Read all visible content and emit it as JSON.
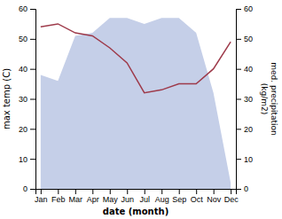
{
  "chart_data": {
    "type": "line",
    "xlabel": "date (month)",
    "ylabel": "max temp (C)",
    "y2label": "med. precipitation\n(kg/m2)",
    "categories": [
      "Jan",
      "Feb",
      "Mar",
      "Apr",
      "May",
      "Jun",
      "Jul",
      "Aug",
      "Sep",
      "Oct",
      "Nov",
      "Dec"
    ],
    "series": [
      {
        "type": "area",
        "axis": "y2",
        "color": "#c5cfe8",
        "values": [
          38,
          36,
          51,
          52,
          57,
          57,
          55,
          57,
          57,
          52,
          32,
          2
        ]
      },
      {
        "type": "line",
        "color": "#9e3a4a",
        "values": [
          54,
          55,
          52,
          51,
          47,
          42,
          32,
          33,
          35,
          35,
          40,
          49
        ]
      }
    ],
    "ylim": [
      0,
      60
    ],
    "yticks": [
      0,
      10,
      20,
      30,
      40,
      50,
      60
    ],
    "y2lim": [
      0,
      60
    ],
    "y2ticks": [
      0,
      10,
      20,
      30,
      40,
      50,
      60
    ],
    "grid": false
  }
}
